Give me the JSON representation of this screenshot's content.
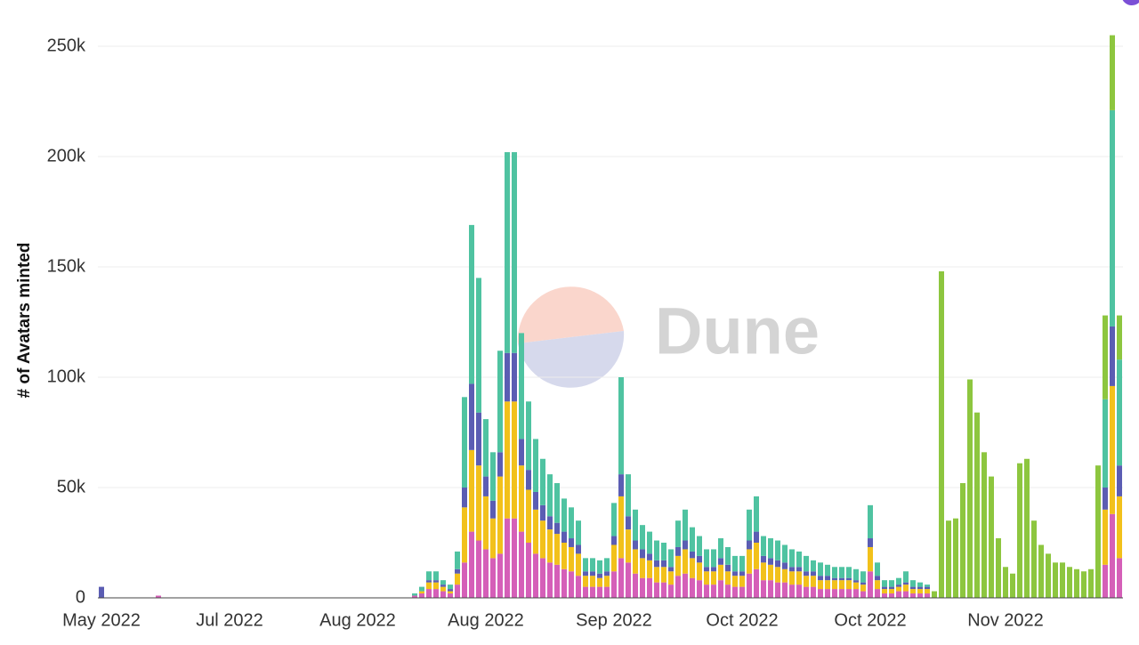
{
  "chart_data": {
    "type": "stacked_bar",
    "y_label": "# of Avatars minted",
    "watermark": "Dune",
    "categories": [
      "May 2022",
      null,
      null,
      null,
      null,
      null,
      null,
      null,
      null,
      null,
      null,
      null,
      null,
      null,
      null,
      null,
      null,
      null,
      "Jul 2022",
      null,
      null,
      null,
      null,
      null,
      null,
      null,
      null,
      null,
      null,
      null,
      null,
      null,
      null,
      null,
      null,
      null,
      "Aug 2022",
      null,
      null,
      null,
      null,
      null,
      null,
      null,
      null,
      null,
      null,
      null,
      null,
      null,
      null,
      null,
      null,
      null,
      "Aug 2022",
      null,
      null,
      null,
      null,
      null,
      null,
      null,
      null,
      null,
      null,
      null,
      null,
      null,
      null,
      null,
      null,
      null,
      "Sep 2022",
      null,
      null,
      null,
      null,
      null,
      null,
      null,
      null,
      null,
      null,
      null,
      null,
      null,
      null,
      null,
      null,
      null,
      "Oct 2022",
      null,
      null,
      null,
      null,
      null,
      null,
      null,
      null,
      null,
      null,
      null,
      null,
      null,
      null,
      null,
      null,
      null,
      "Oct 2022",
      null,
      null,
      null,
      null,
      null,
      null,
      null,
      null,
      null,
      null,
      null,
      null,
      null,
      null,
      null,
      null,
      null,
      null,
      "Nov 2022",
      null,
      null,
      null,
      null,
      null,
      null,
      null,
      null,
      null,
      null,
      null,
      null,
      null,
      null,
      null,
      null
    ],
    "series": [
      {
        "color": "#d55fb8",
        "values": [
          0,
          0,
          0,
          0,
          0,
          0,
          0,
          0,
          1000,
          0,
          0,
          0,
          0,
          0,
          0,
          0,
          0,
          0,
          0,
          0,
          0,
          0,
          0,
          0,
          0,
          0,
          0,
          0,
          0,
          0,
          0,
          0,
          0,
          0,
          0,
          0,
          0,
          0,
          0,
          0,
          0,
          0,
          0,
          0,
          1000,
          2000,
          4000,
          4000,
          3000,
          2000,
          6000,
          16000,
          30000,
          26000,
          22000,
          18000,
          20000,
          36000,
          36000,
          30000,
          25000,
          20000,
          18000,
          16000,
          15000,
          13000,
          12000,
          10000,
          5000,
          5000,
          5000,
          5000,
          12000,
          18000,
          16000,
          11000,
          9000,
          9000,
          7000,
          7000,
          6000,
          10000,
          11000,
          9000,
          8000,
          6000,
          6000,
          8000,
          6000,
          5000,
          5000,
          11000,
          13000,
          8000,
          8000,
          7000,
          7000,
          6000,
          6000,
          5000,
          5000,
          4000,
          4000,
          4000,
          4000,
          4000,
          4000,
          3000,
          12000,
          4000,
          2000,
          2000,
          3000,
          3000,
          2000,
          2000,
          2000,
          0,
          0,
          0,
          0,
          0,
          0,
          0,
          0,
          0,
          0,
          0,
          0,
          0,
          0,
          0,
          0,
          0,
          0,
          0,
          0,
          0,
          0,
          0,
          0,
          15000,
          38000,
          18000
        ]
      },
      {
        "color": "#f2c11b",
        "values": [
          0,
          0,
          0,
          0,
          0,
          0,
          0,
          0,
          0,
          0,
          0,
          0,
          0,
          0,
          0,
          0,
          0,
          0,
          0,
          0,
          0,
          0,
          0,
          0,
          0,
          0,
          0,
          0,
          0,
          0,
          0,
          0,
          0,
          0,
          0,
          0,
          0,
          0,
          0,
          0,
          0,
          0,
          0,
          0,
          0,
          1000,
          3000,
          3000,
          2000,
          1000,
          5000,
          25000,
          37000,
          34000,
          24000,
          18000,
          35000,
          53000,
          53000,
          30000,
          24000,
          20000,
          17000,
          15000,
          14000,
          12000,
          11000,
          10000,
          5000,
          5000,
          4000,
          5000,
          12000,
          28000,
          15000,
          11000,
          9000,
          8000,
          7000,
          7000,
          6000,
          9000,
          11000,
          9000,
          8000,
          6000,
          6000,
          7000,
          6000,
          5000,
          5000,
          11000,
          12000,
          8000,
          7000,
          7000,
          6000,
          6000,
          6000,
          5000,
          5000,
          4000,
          4000,
          4000,
          4000,
          4000,
          3000,
          3000,
          11000,
          4000,
          2000,
          2000,
          2000,
          3000,
          2000,
          2000,
          2000,
          0,
          0,
          0,
          0,
          0,
          0,
          0,
          0,
          0,
          0,
          0,
          0,
          0,
          0,
          0,
          0,
          0,
          0,
          0,
          0,
          0,
          0,
          0,
          0,
          25000,
          58000,
          28000
        ]
      },
      {
        "color": "#5b5db3",
        "values": [
          5000,
          0,
          0,
          0,
          0,
          0,
          0,
          0,
          0,
          0,
          0,
          0,
          0,
          0,
          0,
          0,
          0,
          0,
          0,
          0,
          0,
          0,
          0,
          0,
          0,
          0,
          0,
          0,
          0,
          0,
          0,
          0,
          0,
          0,
          0,
          0,
          0,
          0,
          0,
          0,
          0,
          0,
          0,
          0,
          0,
          0,
          1000,
          1000,
          1000,
          1000,
          2000,
          9000,
          30000,
          24000,
          9000,
          8000,
          11000,
          22000,
          22000,
          12000,
          9000,
          8000,
          7000,
          6000,
          5000,
          5000,
          4000,
          4000,
          2000,
          2000,
          2000,
          2000,
          4000,
          10000,
          6000,
          4000,
          4000,
          3000,
          3000,
          3000,
          2000,
          4000,
          4000,
          3000,
          3000,
          2000,
          2000,
          3000,
          3000,
          2000,
          2000,
          4000,
          5000,
          3000,
          3000,
          3000,
          3000,
          2000,
          2000,
          2000,
          2000,
          2000,
          2000,
          1000,
          1000,
          1000,
          1000,
          1000,
          4000,
          2000,
          1000,
          1000,
          1000,
          1000,
          1000,
          1000,
          1000,
          0,
          0,
          0,
          0,
          0,
          0,
          0,
          0,
          0,
          0,
          0,
          0,
          0,
          0,
          0,
          0,
          0,
          0,
          0,
          0,
          0,
          0,
          0,
          0,
          10000,
          27000,
          14000
        ]
      },
      {
        "color": "#4fc3a1",
        "values": [
          0,
          0,
          0,
          0,
          0,
          0,
          0,
          0,
          0,
          0,
          0,
          0,
          0,
          0,
          0,
          0,
          0,
          0,
          0,
          0,
          0,
          0,
          0,
          0,
          0,
          0,
          0,
          0,
          0,
          0,
          0,
          0,
          0,
          0,
          0,
          0,
          0,
          0,
          0,
          0,
          0,
          0,
          0,
          0,
          1000,
          2000,
          4000,
          4000,
          2000,
          2000,
          8000,
          41000,
          72000,
          61000,
          26000,
          22000,
          46000,
          91000,
          91000,
          48000,
          31000,
          24000,
          21000,
          19000,
          18000,
          15000,
          14000,
          11000,
          6000,
          6000,
          6000,
          6000,
          15000,
          44000,
          19000,
          14000,
          11000,
          10000,
          9000,
          8000,
          8000,
          12000,
          14000,
          11000,
          9000,
          8000,
          8000,
          9000,
          8000,
          7000,
          7000,
          14000,
          16000,
          9000,
          9000,
          9000,
          8000,
          8000,
          7000,
          7000,
          5000,
          6000,
          5000,
          5000,
          5000,
          5000,
          5000,
          5000,
          15000,
          6000,
          3000,
          3000,
          3000,
          5000,
          3000,
          2000,
          1000,
          0,
          0,
          0,
          0,
          0,
          0,
          0,
          0,
          0,
          0,
          0,
          0,
          0,
          0,
          0,
          0,
          0,
          0,
          0,
          0,
          0,
          0,
          0,
          0,
          40000,
          98000,
          48000
        ]
      },
      {
        "color": "#8dc63f",
        "values": [
          0,
          0,
          0,
          0,
          0,
          0,
          0,
          0,
          0,
          0,
          0,
          0,
          0,
          0,
          0,
          0,
          0,
          0,
          0,
          0,
          0,
          0,
          0,
          0,
          0,
          0,
          0,
          0,
          0,
          0,
          0,
          0,
          0,
          0,
          0,
          0,
          0,
          0,
          0,
          0,
          0,
          0,
          0,
          0,
          0,
          0,
          0,
          0,
          0,
          0,
          0,
          0,
          0,
          0,
          0,
          0,
          0,
          0,
          0,
          0,
          0,
          0,
          0,
          0,
          0,
          0,
          0,
          0,
          0,
          0,
          0,
          0,
          0,
          0,
          0,
          0,
          0,
          0,
          0,
          0,
          0,
          0,
          0,
          0,
          0,
          0,
          0,
          0,
          0,
          0,
          0,
          0,
          0,
          0,
          0,
          0,
          0,
          0,
          0,
          0,
          0,
          0,
          0,
          0,
          0,
          0,
          0,
          0,
          0,
          0,
          0,
          0,
          0,
          0,
          0,
          0,
          0,
          3000,
          148000,
          35000,
          36000,
          52000,
          99000,
          84000,
          66000,
          55000,
          27000,
          14000,
          11000,
          61000,
          63000,
          35000,
          24000,
          20000,
          16000,
          16000,
          14000,
          13000,
          12000,
          13000,
          60000,
          38000,
          34000,
          20000
        ]
      }
    ],
    "ylim": [
      0,
      250000
    ],
    "yticks": [
      {
        "value": 0,
        "label": "0"
      },
      {
        "value": 50000,
        "label": "50k"
      },
      {
        "value": 100000,
        "label": "100k"
      },
      {
        "value": 150000,
        "label": "150k"
      },
      {
        "value": 200000,
        "label": "200k"
      },
      {
        "value": 250000,
        "label": "250k"
      }
    ],
    "grid": true
  }
}
